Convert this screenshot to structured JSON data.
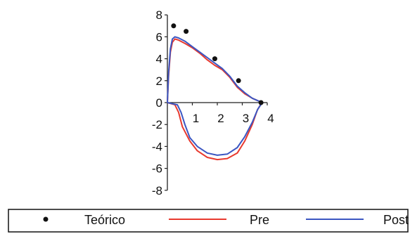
{
  "chart_data": {
    "type": "line",
    "title": "",
    "xlabel": "",
    "ylabel": "",
    "xlim": [
      0,
      4
    ],
    "ylim": [
      -8,
      8
    ],
    "x_ticks": [
      "1",
      "2",
      "3",
      "4"
    ],
    "y_ticks": [
      "8",
      "6",
      "4",
      "2",
      "0",
      "-2",
      "-4",
      "-6",
      "-8"
    ],
    "grid": false,
    "legend_position": "bottom",
    "series": [
      {
        "name": "Teórico",
        "kind": "scatter",
        "color": "#111111",
        "points": [
          [
            0.25,
            7.0
          ],
          [
            0.75,
            6.5
          ],
          [
            1.9,
            4.0
          ],
          [
            2.85,
            2.0
          ],
          [
            3.75,
            0.0
          ]
        ]
      },
      {
        "name": "Pre",
        "kind": "line",
        "color": "#e8392f",
        "points": [
          [
            0.0,
            0.0
          ],
          [
            0.05,
            2.5
          ],
          [
            0.12,
            4.6
          ],
          [
            0.2,
            5.5
          ],
          [
            0.3,
            5.8
          ],
          [
            0.45,
            5.7
          ],
          [
            0.7,
            5.4
          ],
          [
            1.0,
            5.0
          ],
          [
            1.3,
            4.5
          ],
          [
            1.6,
            3.9
          ],
          [
            1.9,
            3.4
          ],
          [
            2.2,
            3.0
          ],
          [
            2.5,
            2.3
          ],
          [
            2.8,
            1.4
          ],
          [
            3.1,
            0.8
          ],
          [
            3.4,
            0.4
          ],
          [
            3.6,
            0.2
          ],
          [
            3.78,
            0.0
          ],
          [
            3.6,
            -0.7
          ],
          [
            3.4,
            -2.0
          ],
          [
            3.1,
            -3.5
          ],
          [
            2.8,
            -4.6
          ],
          [
            2.4,
            -5.1
          ],
          [
            2.0,
            -5.2
          ],
          [
            1.6,
            -5.0
          ],
          [
            1.2,
            -4.4
          ],
          [
            0.9,
            -3.5
          ],
          [
            0.6,
            -2.2
          ],
          [
            0.45,
            -0.9
          ],
          [
            0.3,
            -0.2
          ],
          [
            0.0,
            0.0
          ]
        ]
      },
      {
        "name": "Post",
        "kind": "line",
        "color": "#3b56c2",
        "points": [
          [
            0.0,
            0.0
          ],
          [
            0.05,
            2.8
          ],
          [
            0.12,
            4.9
          ],
          [
            0.2,
            5.8
          ],
          [
            0.3,
            6.0
          ],
          [
            0.45,
            5.9
          ],
          [
            0.7,
            5.6
          ],
          [
            1.0,
            5.1
          ],
          [
            1.3,
            4.6
          ],
          [
            1.6,
            4.1
          ],
          [
            1.9,
            3.6
          ],
          [
            2.2,
            3.1
          ],
          [
            2.5,
            2.4
          ],
          [
            2.8,
            1.5
          ],
          [
            3.1,
            0.9
          ],
          [
            3.4,
            0.4
          ],
          [
            3.6,
            0.2
          ],
          [
            3.8,
            0.0
          ],
          [
            3.62,
            -0.6
          ],
          [
            3.4,
            -1.8
          ],
          [
            3.1,
            -3.1
          ],
          [
            2.8,
            -4.1
          ],
          [
            2.4,
            -4.7
          ],
          [
            2.0,
            -4.8
          ],
          [
            1.6,
            -4.6
          ],
          [
            1.2,
            -4.0
          ],
          [
            0.9,
            -3.2
          ],
          [
            0.7,
            -2.0
          ],
          [
            0.55,
            -0.9
          ],
          [
            0.4,
            -0.2
          ],
          [
            0.0,
            0.0
          ]
        ]
      }
    ]
  }
}
